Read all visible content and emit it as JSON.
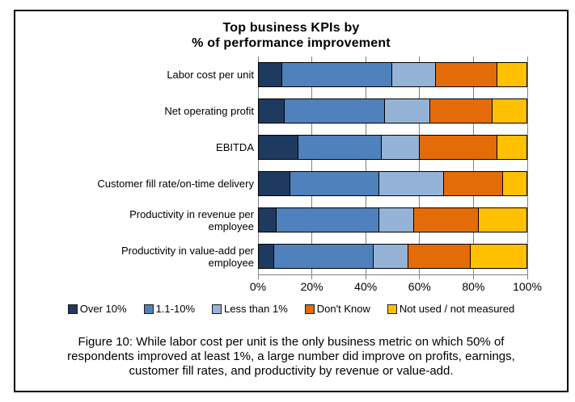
{
  "figure": {
    "title_lines": [
      "Top business KPIs by",
      "% of performance improvement"
    ],
    "caption": "Figure 10: While labor cost per unit is the only business metric on which 50% of respondents improved at least 1%, a large number did improve on profits, earnings, customer fill rates, and productivity by revenue or value-add."
  },
  "chart_data": {
    "type": "bar",
    "orientation": "horizontal",
    "stacked": true,
    "title": "Top business KPIs by % of performance improvement",
    "units": "% of respondents",
    "categories": [
      "Labor cost per unit",
      "Net operating profit",
      "EBITDA",
      "Customer fill rate/on-time delivery",
      "Productivity in revenue per\nemployee",
      "Productivity in value-add per\nemployee"
    ],
    "series": [
      {
        "name": "Over 10%",
        "color": "#1F3A5F",
        "values": [
          9,
          10,
          15,
          12,
          7,
          6
        ]
      },
      {
        "name": "1.1-10%",
        "color": "#4F81BD",
        "values": [
          41,
          37,
          31,
          33,
          38,
          37
        ]
      },
      {
        "name": "Less than 1%",
        "color": "#95B3D7",
        "values": [
          16,
          17,
          14,
          24,
          13,
          13
        ]
      },
      {
        "name": "Don't Know",
        "color": "#E36C09",
        "values": [
          23,
          23,
          29,
          22,
          24,
          23
        ]
      },
      {
        "name": "Not used / not measured",
        "color": "#FFC000",
        "values": [
          11,
          13,
          11,
          9,
          18,
          21
        ]
      }
    ],
    "x_ticks": [
      "0%",
      "20%",
      "40%",
      "60%",
      "80%",
      "100%"
    ],
    "xlim": [
      0,
      100
    ],
    "grid": true,
    "gridline_color": "#808080",
    "legend_position": "bottom"
  }
}
